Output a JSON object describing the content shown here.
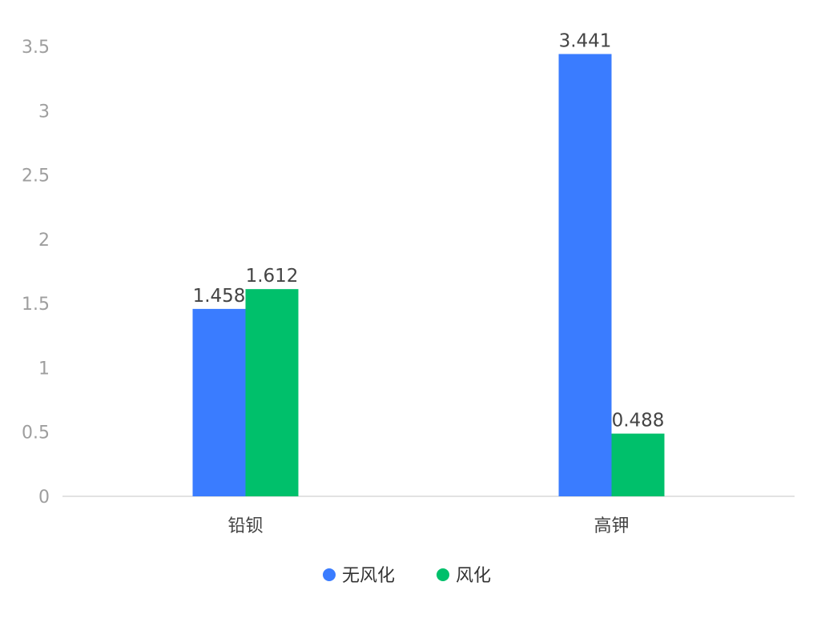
{
  "chart_data": {
    "type": "bar",
    "categories": [
      "铅钡",
      "高钾"
    ],
    "series": [
      {
        "name": "无风化",
        "values": [
          1.458,
          3.441
        ],
        "color": "#3a7cff"
      },
      {
        "name": "风化",
        "values": [
          1.612,
          0.488
        ],
        "color": "#00c06b"
      }
    ],
    "y_ticks": [
      "0",
      "0.5",
      "1",
      "1.5",
      "2",
      "2.5",
      "3",
      "3.5"
    ],
    "ylim": [
      0,
      3.5
    ],
    "grid": false,
    "legend": "bottom-center",
    "data_labels": [
      "1.458",
      "3.441",
      "1.612",
      "0.488"
    ]
  }
}
